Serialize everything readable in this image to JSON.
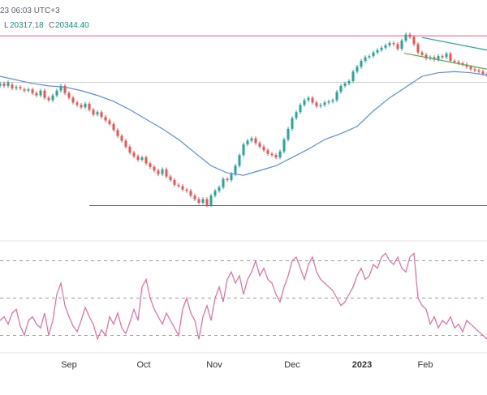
{
  "header": {
    "timestamp": "23 06:03 UTC+3",
    "low_label": "L",
    "low_value": "20317.18",
    "close_label": "C",
    "close_value": "20344.40"
  },
  "chart_data": [
    {
      "type": "candlestick",
      "title": "",
      "x_ticks": [
        "Sep",
        "Oct",
        "Nov",
        "Dec",
        "2023",
        "Feb"
      ],
      "x_range": [
        "2022-08-06",
        "2023-02-26"
      ],
      "grid": false,
      "y_price_range": [
        19990,
        21000
      ],
      "horizontal_lines": [
        {
          "name": "resistance",
          "value": 20850,
          "color": "#f06292"
        },
        {
          "name": "mid",
          "value": 20655,
          "color": "#f8bbd0"
        },
        {
          "name": "support",
          "value": 20138,
          "color": "#e91e63"
        }
      ],
      "series": [
        {
          "name": "price",
          "style": "candles",
          "up_color": "#26a69a",
          "down_color": "#ef5350",
          "x": [
            0,
            5,
            10,
            15,
            20,
            25,
            30,
            35,
            40,
            45,
            50,
            55,
            60,
            65,
            70,
            75,
            80,
            85,
            90,
            95,
            100,
            105,
            110,
            115,
            120,
            125,
            130,
            135,
            140,
            145,
            150,
            155,
            160,
            165,
            170,
            175,
            180,
            185,
            190,
            195,
            200,
            205,
            210,
            215,
            220,
            225,
            230,
            235,
            240,
            245,
            250,
            255,
            260,
            265,
            270,
            275,
            280,
            285,
            290,
            295,
            300,
            305,
            310,
            315,
            320,
            325,
            330,
            335,
            340,
            345,
            350,
            355,
            360,
            365,
            370,
            375,
            380,
            385,
            390,
            395,
            400,
            405,
            410,
            415,
            420,
            425,
            430,
            435,
            440,
            445,
            450,
            455,
            460,
            465,
            470,
            475,
            480,
            485,
            490,
            495,
            500,
            505,
            510,
            515,
            520,
            525,
            530,
            535,
            540,
            545,
            550,
            555,
            560,
            565,
            570,
            575,
            580,
            585,
            590,
            595,
            600
          ],
          "close": [
            20650,
            20640,
            20655,
            20630,
            20635,
            20630,
            20620,
            20625,
            20610,
            20600,
            20620,
            20590,
            20580,
            20600,
            20620,
            20640,
            20610,
            20590,
            20570,
            20560,
            20550,
            20565,
            20540,
            20520,
            20530,
            20510,
            20495,
            20480,
            20455,
            20430,
            20410,
            20385,
            20360,
            20345,
            20330,
            20340,
            20315,
            20300,
            20285,
            20270,
            20290,
            20260,
            20245,
            20225,
            20220,
            20205,
            20200,
            20180,
            20165,
            20150,
            20165,
            20140,
            20180,
            20200,
            20215,
            20250,
            20245,
            20270,
            20305,
            20350,
            20395,
            20410,
            20420,
            20400,
            20385,
            20370,
            20355,
            20350,
            20340,
            20365,
            20415,
            20460,
            20505,
            20530,
            20560,
            20580,
            20590,
            20570,
            20555,
            20560,
            20570,
            20575,
            20580,
            20615,
            20640,
            20650,
            20660,
            20700,
            20720,
            20745,
            20760,
            20765,
            20780,
            20790,
            20800,
            20810,
            20820,
            20815,
            20795,
            20830,
            20855,
            20845,
            20815,
            20780,
            20770,
            20755,
            20760,
            20750,
            20765,
            20760,
            20775,
            20745,
            20740,
            20735,
            20730,
            20720,
            20710,
            20705,
            20700,
            20690,
            20685
          ],
          "open": [
            20640,
            20650,
            20640,
            20645,
            20630,
            20635,
            20625,
            20620,
            20625,
            20610,
            20600,
            20620,
            20590,
            20580,
            20600,
            20620,
            20640,
            20610,
            20590,
            20570,
            20560,
            20550,
            20565,
            20540,
            20520,
            20530,
            20510,
            20495,
            20480,
            20455,
            20430,
            20410,
            20385,
            20360,
            20345,
            20330,
            20340,
            20315,
            20300,
            20285,
            20270,
            20290,
            20260,
            20245,
            20225,
            20220,
            20205,
            20200,
            20180,
            20165,
            20150,
            20165,
            20140,
            20180,
            20200,
            20215,
            20250,
            20245,
            20270,
            20305,
            20350,
            20395,
            20410,
            20420,
            20400,
            20385,
            20370,
            20355,
            20350,
            20340,
            20365,
            20415,
            20460,
            20505,
            20530,
            20560,
            20580,
            20590,
            20570,
            20555,
            20560,
            20570,
            20575,
            20580,
            20615,
            20640,
            20650,
            20660,
            20700,
            20720,
            20745,
            20760,
            20765,
            20780,
            20790,
            20800,
            20810,
            20820,
            20815,
            20795,
            20830,
            20855,
            20845,
            20815,
            20780,
            20770,
            20755,
            20760,
            20750,
            20765,
            20760,
            20775,
            20745,
            20740,
            20735,
            20730,
            20720,
            20710,
            20705,
            20700,
            20690
          ]
        },
        {
          "name": "moving-average",
          "style": "line",
          "color": "#5b8def",
          "x": [
            0,
            20,
            40,
            60,
            80,
            100,
            120,
            140,
            160,
            180,
            200,
            220,
            240,
            260,
            280,
            300,
            320,
            340,
            360,
            380,
            400,
            420,
            440,
            460,
            480,
            500,
            520,
            540,
            560,
            580,
            600
          ],
          "values": [
            20680,
            20665,
            20650,
            20640,
            20635,
            20620,
            20600,
            20575,
            20540,
            20500,
            20460,
            20415,
            20360,
            20305,
            20275,
            20265,
            20285,
            20305,
            20340,
            20375,
            20415,
            20440,
            20470,
            20535,
            20590,
            20635,
            20680,
            20695,
            20700,
            20695,
            20685
          ]
        },
        {
          "name": "channel-upper",
          "style": "line",
          "color": "#26a69a",
          "x": [
            520,
            600
          ],
          "values": [
            20843,
            20790
          ]
        },
        {
          "name": "channel-lower",
          "style": "line",
          "color": "#4caf50",
          "x": [
            498,
            600
          ],
          "values": [
            20777,
            20710
          ]
        }
      ]
    },
    {
      "type": "line",
      "title": "",
      "ylim": [
        25,
        75
      ],
      "horizontal_lines": [
        {
          "name": "overbought",
          "value": 70,
          "color": "#9e9e9e"
        },
        {
          "name": "middle",
          "value": 50,
          "color": "#9e9e9e"
        },
        {
          "name": "oversold",
          "value": 30,
          "color": "#9e9e9e"
        }
      ],
      "series": [
        {
          "name": "RSI",
          "color": "#e76aa2",
          "x": [
            0,
            5,
            10,
            15,
            20,
            25,
            30,
            35,
            40,
            45,
            50,
            55,
            60,
            65,
            70,
            75,
            80,
            85,
            90,
            95,
            100,
            105,
            110,
            115,
            120,
            125,
            130,
            135,
            140,
            145,
            150,
            155,
            160,
            165,
            170,
            175,
            180,
            185,
            190,
            195,
            200,
            205,
            210,
            215,
            220,
            225,
            230,
            235,
            240,
            245,
            250,
            255,
            260,
            265,
            270,
            275,
            280,
            285,
            290,
            295,
            300,
            305,
            310,
            315,
            320,
            325,
            330,
            335,
            340,
            345,
            350,
            355,
            360,
            365,
            370,
            375,
            380,
            385,
            390,
            395,
            400,
            405,
            410,
            415,
            420,
            425,
            430,
            435,
            440,
            445,
            450,
            455,
            460,
            465,
            470,
            475,
            480,
            485,
            490,
            495,
            500,
            505,
            510,
            515,
            520,
            525,
            530,
            535,
            540,
            545,
            550,
            555,
            560,
            565,
            570,
            575,
            580,
            585,
            590,
            595,
            600
          ],
          "values": [
            38,
            40,
            36,
            42,
            44,
            35,
            30,
            38,
            40,
            36,
            34,
            42,
            30,
            38,
            52,
            58,
            46,
            40,
            35,
            32,
            38,
            45,
            40,
            36,
            28,
            33,
            30,
            40,
            36,
            42,
            34,
            31,
            37,
            44,
            38,
            56,
            60,
            50,
            44,
            40,
            36,
            42,
            38,
            34,
            30,
            44,
            50,
            42,
            38,
            28,
            40,
            46,
            38,
            50,
            56,
            48,
            60,
            64,
            58,
            62,
            52,
            60,
            64,
            70,
            62,
            66,
            60,
            58,
            52,
            48,
            56,
            62,
            70,
            72,
            66,
            60,
            68,
            72,
            64,
            60,
            58,
            56,
            54,
            50,
            46,
            48,
            52,
            56,
            62,
            66,
            60,
            62,
            68,
            66,
            72,
            74,
            70,
            68,
            72,
            66,
            64,
            72,
            74,
            50,
            46,
            44,
            36,
            40,
            34,
            38,
            36,
            40,
            34,
            36,
            32,
            38,
            36,
            34,
            32,
            30,
            28
          ]
        }
      ]
    }
  ]
}
